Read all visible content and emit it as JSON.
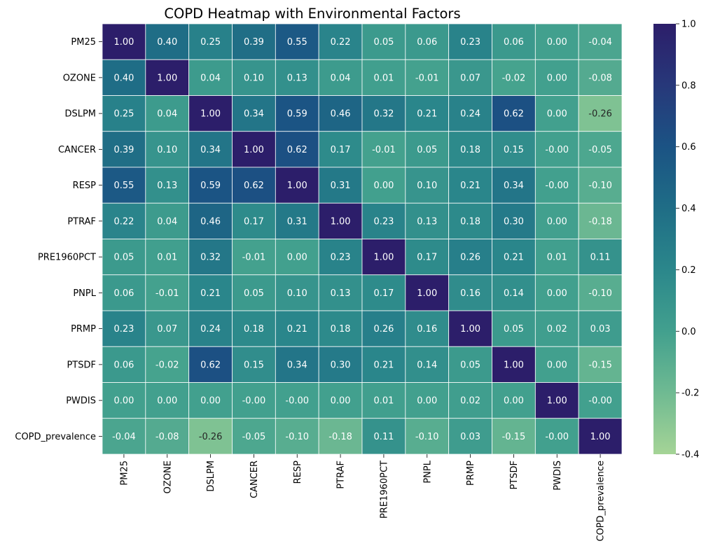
{
  "chart_data": {
    "type": "heatmap",
    "title": "COPD Heatmap with Environmental Factors",
    "row_labels": [
      "PM25",
      "OZONE",
      "DSLPM",
      "CANCER",
      "RESP",
      "PTRAF",
      "PRE1960PCT",
      "PNPL",
      "PRMP",
      "PTSDF",
      "PWDIS",
      "COPD_prevalence"
    ],
    "col_labels": [
      "PM25",
      "OZONE",
      "DSLPM",
      "CANCER",
      "RESP",
      "PTRAF",
      "PRE1960PCT",
      "PNPL",
      "PRMP",
      "PTSDF",
      "PWDIS",
      "COPD_prevalence"
    ],
    "values": [
      [
        "1.00",
        "0.40",
        "0.25",
        "0.39",
        "0.55",
        "0.22",
        "0.05",
        "0.06",
        "0.23",
        "0.06",
        "0.00",
        "-0.04"
      ],
      [
        "0.40",
        "1.00",
        "0.04",
        "0.10",
        "0.13",
        "0.04",
        "0.01",
        "-0.01",
        "0.07",
        "-0.02",
        "0.00",
        "-0.08"
      ],
      [
        "0.25",
        "0.04",
        "1.00",
        "0.34",
        "0.59",
        "0.46",
        "0.32",
        "0.21",
        "0.24",
        "0.62",
        "0.00",
        "-0.26"
      ],
      [
        "0.39",
        "0.10",
        "0.34",
        "1.00",
        "0.62",
        "0.17",
        "-0.01",
        "0.05",
        "0.18",
        "0.15",
        "-0.00",
        "-0.05"
      ],
      [
        "0.55",
        "0.13",
        "0.59",
        "0.62",
        "1.00",
        "0.31",
        "0.00",
        "0.10",
        "0.21",
        "0.34",
        "-0.00",
        "-0.10"
      ],
      [
        "0.22",
        "0.04",
        "0.46",
        "0.17",
        "0.31",
        "1.00",
        "0.23",
        "0.13",
        "0.18",
        "0.30",
        "0.00",
        "-0.18"
      ],
      [
        "0.05",
        "0.01",
        "0.32",
        "-0.01",
        "0.00",
        "0.23",
        "1.00",
        "0.17",
        "0.26",
        "0.21",
        "0.01",
        "0.11"
      ],
      [
        "0.06",
        "-0.01",
        "0.21",
        "0.05",
        "0.10",
        "0.13",
        "0.17",
        "1.00",
        "0.16",
        "0.14",
        "0.00",
        "-0.10"
      ],
      [
        "0.23",
        "0.07",
        "0.24",
        "0.18",
        "0.21",
        "0.18",
        "0.26",
        "0.16",
        "1.00",
        "0.05",
        "0.02",
        "0.03"
      ],
      [
        "0.06",
        "-0.02",
        "0.62",
        "0.15",
        "0.34",
        "0.30",
        "0.21",
        "0.14",
        "0.05",
        "1.00",
        "0.00",
        "-0.15"
      ],
      [
        "0.00",
        "0.00",
        "0.00",
        "-0.00",
        "-0.00",
        "0.00",
        "0.01",
        "0.00",
        "0.02",
        "0.00",
        "1.00",
        "-0.00"
      ],
      [
        "-0.04",
        "-0.08",
        "-0.26",
        "-0.05",
        "-0.10",
        "-0.18",
        "0.11",
        "-0.10",
        "0.03",
        "-0.15",
        "-0.00",
        "1.00"
      ]
    ],
    "colorbar": {
      "vmin": -0.4,
      "vmax": 1.0,
      "ticks": [
        "-0.4",
        "-0.2",
        "0.0",
        "0.2",
        "0.4",
        "0.6",
        "0.8",
        "1.0"
      ],
      "colormap": "crest",
      "colors": [
        "#a5d496",
        "#6fba92",
        "#42a08e",
        "#2b878b",
        "#1f6d86",
        "#1b5384",
        "#27387a",
        "#2c1e6a"
      ]
    },
    "grid_line_color": "#ffffff"
  }
}
